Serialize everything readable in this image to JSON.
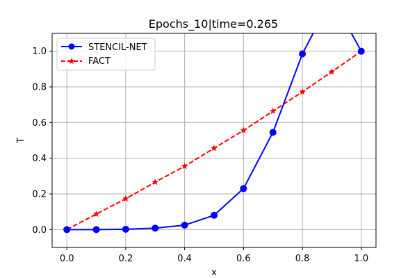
{
  "chart_data": {
    "type": "line",
    "title": "Epochs_10|time=0.265",
    "xlabel": "x",
    "ylabel": "T",
    "xlim": [
      -0.05,
      1.05
    ],
    "ylim": [
      -0.1,
      1.1
    ],
    "xticks": [
      0.0,
      0.2,
      0.4,
      0.6,
      0.8,
      1.0
    ],
    "yticks": [
      0.0,
      0.2,
      0.4,
      0.6,
      0.8,
      1.0
    ],
    "xtick_labels": [
      "0.0",
      "0.2",
      "0.4",
      "0.6",
      "0.8",
      "1.0"
    ],
    "ytick_labels": [
      "0.0",
      "0.2",
      "0.4",
      "0.6",
      "0.8",
      "1.0"
    ],
    "grid": true,
    "legend_position": "top-left",
    "series": [
      {
        "name": "STENCIL-NET",
        "color": "#0000ff",
        "line_style": "solid",
        "marker": "circle",
        "x": [
          0.0,
          0.1,
          0.2,
          0.3,
          0.4,
          0.5,
          0.6,
          0.7,
          0.8,
          0.9,
          1.0
        ],
        "y": [
          0.0,
          0.0,
          0.002,
          0.008,
          0.025,
          0.08,
          0.23,
          0.545,
          0.985,
          1.3,
          1.0
        ]
      },
      {
        "name": "FACT",
        "color": "#ff0000",
        "line_style": "dashed",
        "marker": "star",
        "x": [
          0.0,
          0.1,
          0.2,
          0.3,
          0.4,
          0.5,
          0.6,
          0.7,
          0.8,
          0.9,
          1.0
        ],
        "y": [
          0.0,
          0.087,
          0.173,
          0.266,
          0.355,
          0.456,
          0.556,
          0.664,
          0.772,
          0.885,
          1.0
        ]
      }
    ]
  }
}
